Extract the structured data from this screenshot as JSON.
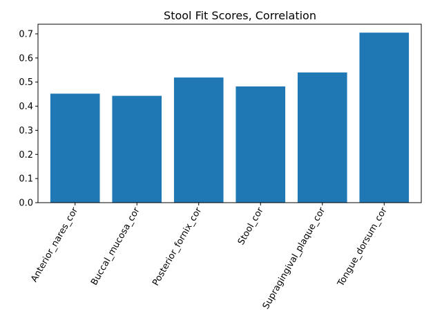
{
  "chart_data": {
    "type": "bar",
    "title": "Stool Fit Scores, Correlation",
    "xlabel": "",
    "ylabel": "",
    "categories": [
      "Anterior_nares_cor",
      "Buccal_mucosa_cor",
      "Posterior_fornix_cor",
      "Stool_cor",
      "Supragingival_plaque_cor",
      "Tongue_dorsum_cor"
    ],
    "values": [
      0.452,
      0.443,
      0.519,
      0.482,
      0.54,
      0.705
    ],
    "ylim": [
      0,
      0.74
    ],
    "yticks": [
      "0.0",
      "0.1",
      "0.2",
      "0.3",
      "0.4",
      "0.5",
      "0.6",
      "0.7"
    ],
    "bar_color": "#1f77b4",
    "grid": false,
    "legend": "none"
  }
}
